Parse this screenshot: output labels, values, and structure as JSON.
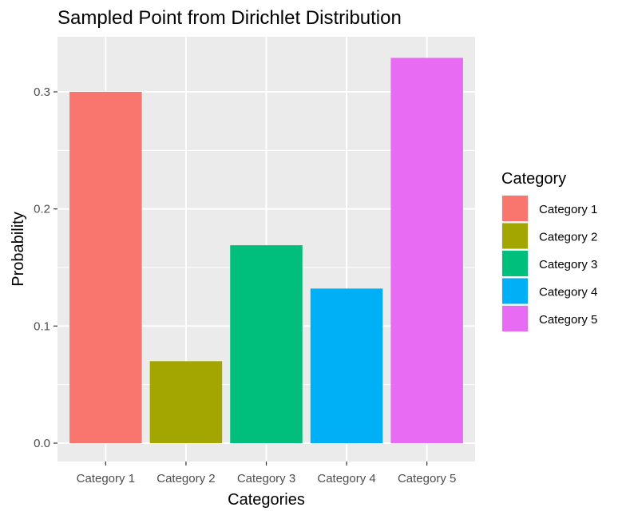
{
  "chart_data": {
    "type": "bar",
    "title": "Sampled Point from Dirichlet Distribution",
    "xlabel": "Categories",
    "ylabel": "Probability",
    "ylim": [
      0,
      0.33
    ],
    "yticks": [
      "0.0",
      "0.1",
      "0.2",
      "0.3"
    ],
    "ytick_values": [
      0,
      0.1,
      0.2,
      0.3
    ],
    "categories": [
      "Category 1",
      "Category 2",
      "Category 3",
      "Category 4",
      "Category 5"
    ],
    "values": [
      0.3,
      0.07,
      0.169,
      0.132,
      0.329
    ],
    "colors": [
      "#F8766D",
      "#A3A500",
      "#00BF7D",
      "#00B0F6",
      "#E76BF3"
    ],
    "legend": {
      "title": "Category",
      "placement": "right",
      "entries": [
        "Category 1",
        "Category 2",
        "Category 3",
        "Category 4",
        "Category 5"
      ]
    },
    "grid": true,
    "background": "#EBEBEB"
  }
}
